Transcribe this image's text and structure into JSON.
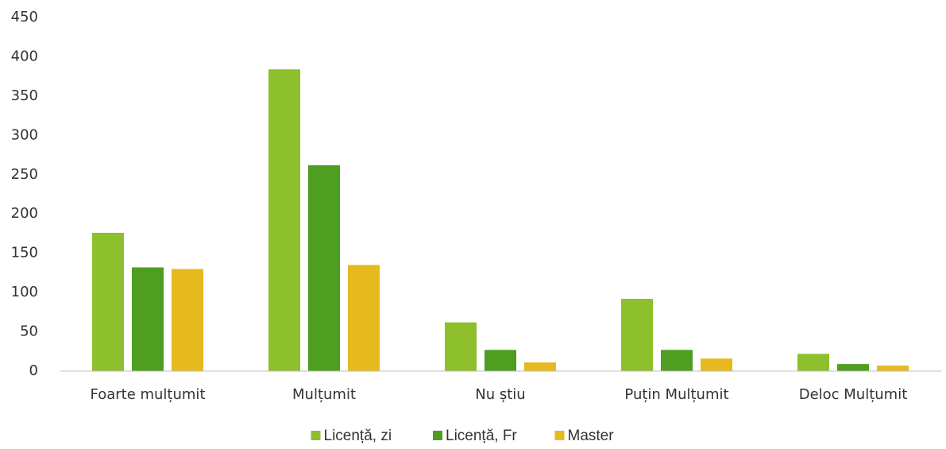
{
  "chart_data": {
    "type": "bar",
    "categories": [
      "Foarte mulțumit",
      "Mulțumit",
      "Nu știu",
      "Puțin Mulțumit",
      "Deloc Mulțumit"
    ],
    "series": [
      {
        "name": "Licență, zi",
        "color": "#8dc02c",
        "values": [
          176,
          384,
          62,
          92,
          22
        ]
      },
      {
        "name": "Licență, Fr",
        "color": "#4e9e21",
        "values": [
          132,
          262,
          27,
          27,
          9
        ]
      },
      {
        "name": "Master",
        "color": "#e6b91e",
        "values": [
          130,
          135,
          11,
          16,
          7
        ]
      }
    ],
    "ylim": [
      0,
      450
    ],
    "yticks": [
      0,
      50,
      100,
      150,
      200,
      250,
      300,
      350,
      400,
      450
    ],
    "grid": false,
    "legend": "bottom"
  }
}
